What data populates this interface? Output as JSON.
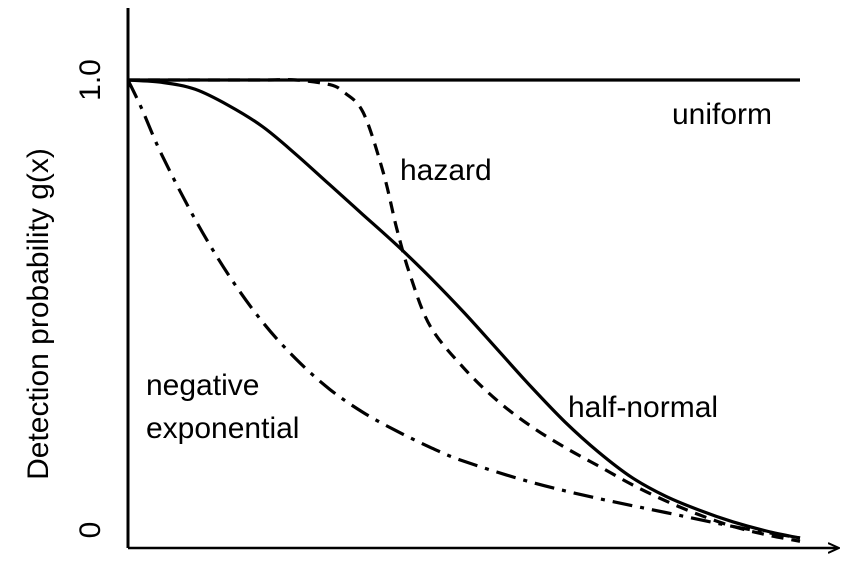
{
  "chart_data": {
    "type": "line",
    "title": "",
    "xlabel": "",
    "ylabel": "Detection probability g(x)",
    "xlim": [
      0,
      1
    ],
    "ylim": [
      0,
      1
    ],
    "y_ticks": [
      {
        "value": 0,
        "label": "0"
      },
      {
        "value": 1,
        "label": "1.0"
      }
    ],
    "grid": false,
    "legend": "none",
    "series": [
      {
        "name": "uniform",
        "style": "solid",
        "x": [
          0,
          0.25,
          0.5,
          0.75,
          1.0
        ],
        "y": [
          1.0,
          1.0,
          1.0,
          1.0,
          1.0
        ]
      },
      {
        "name": "half-normal",
        "style": "solid",
        "x": [
          0,
          0.05,
          0.1,
          0.15,
          0.2,
          0.25,
          0.3,
          0.35,
          0.4,
          0.45,
          0.5,
          0.55,
          0.6,
          0.65,
          0.7,
          0.75,
          0.8,
          0.85,
          0.9,
          0.95,
          1.0
        ],
        "y": [
          1.0,
          0.995,
          0.98,
          0.945,
          0.9,
          0.84,
          0.775,
          0.71,
          0.645,
          0.575,
          0.5,
          0.42,
          0.34,
          0.265,
          0.2,
          0.145,
          0.105,
          0.075,
          0.05,
          0.03,
          0.015
        ]
      },
      {
        "name": "hazard",
        "style": "dashed",
        "x": [
          0,
          0.1,
          0.2,
          0.25,
          0.3,
          0.32,
          0.35,
          0.38,
          0.4,
          0.42,
          0.45,
          0.5,
          0.55,
          0.6,
          0.65,
          0.7,
          0.75,
          0.8,
          0.85,
          0.9,
          0.95,
          1.0
        ],
        "y": [
          1.0,
          1.0,
          1.0,
          1.0,
          0.99,
          0.975,
          0.93,
          0.8,
          0.68,
          0.58,
          0.47,
          0.38,
          0.31,
          0.255,
          0.21,
          0.17,
          0.13,
          0.095,
          0.065,
          0.04,
          0.022,
          0.008
        ]
      },
      {
        "name": "negative exponential",
        "style": "dash-dot",
        "x": [
          0,
          0.02,
          0.05,
          0.1,
          0.15,
          0.2,
          0.25,
          0.3,
          0.35,
          0.4,
          0.45,
          0.5,
          0.6,
          0.7,
          0.8,
          0.9,
          1.0
        ],
        "y": [
          1.0,
          0.94,
          0.84,
          0.7,
          0.58,
          0.48,
          0.4,
          0.335,
          0.285,
          0.245,
          0.21,
          0.18,
          0.135,
          0.1,
          0.07,
          0.04,
          0.015
        ]
      }
    ],
    "annotations": [
      {
        "text": "uniform",
        "series": "uniform"
      },
      {
        "text": "hazard",
        "series": "hazard"
      },
      {
        "text": "half-normal",
        "series": "half-normal"
      },
      {
        "text": "negative",
        "series": "negative exponential"
      },
      {
        "text": "exponential",
        "series": "negative exponential"
      }
    ]
  }
}
